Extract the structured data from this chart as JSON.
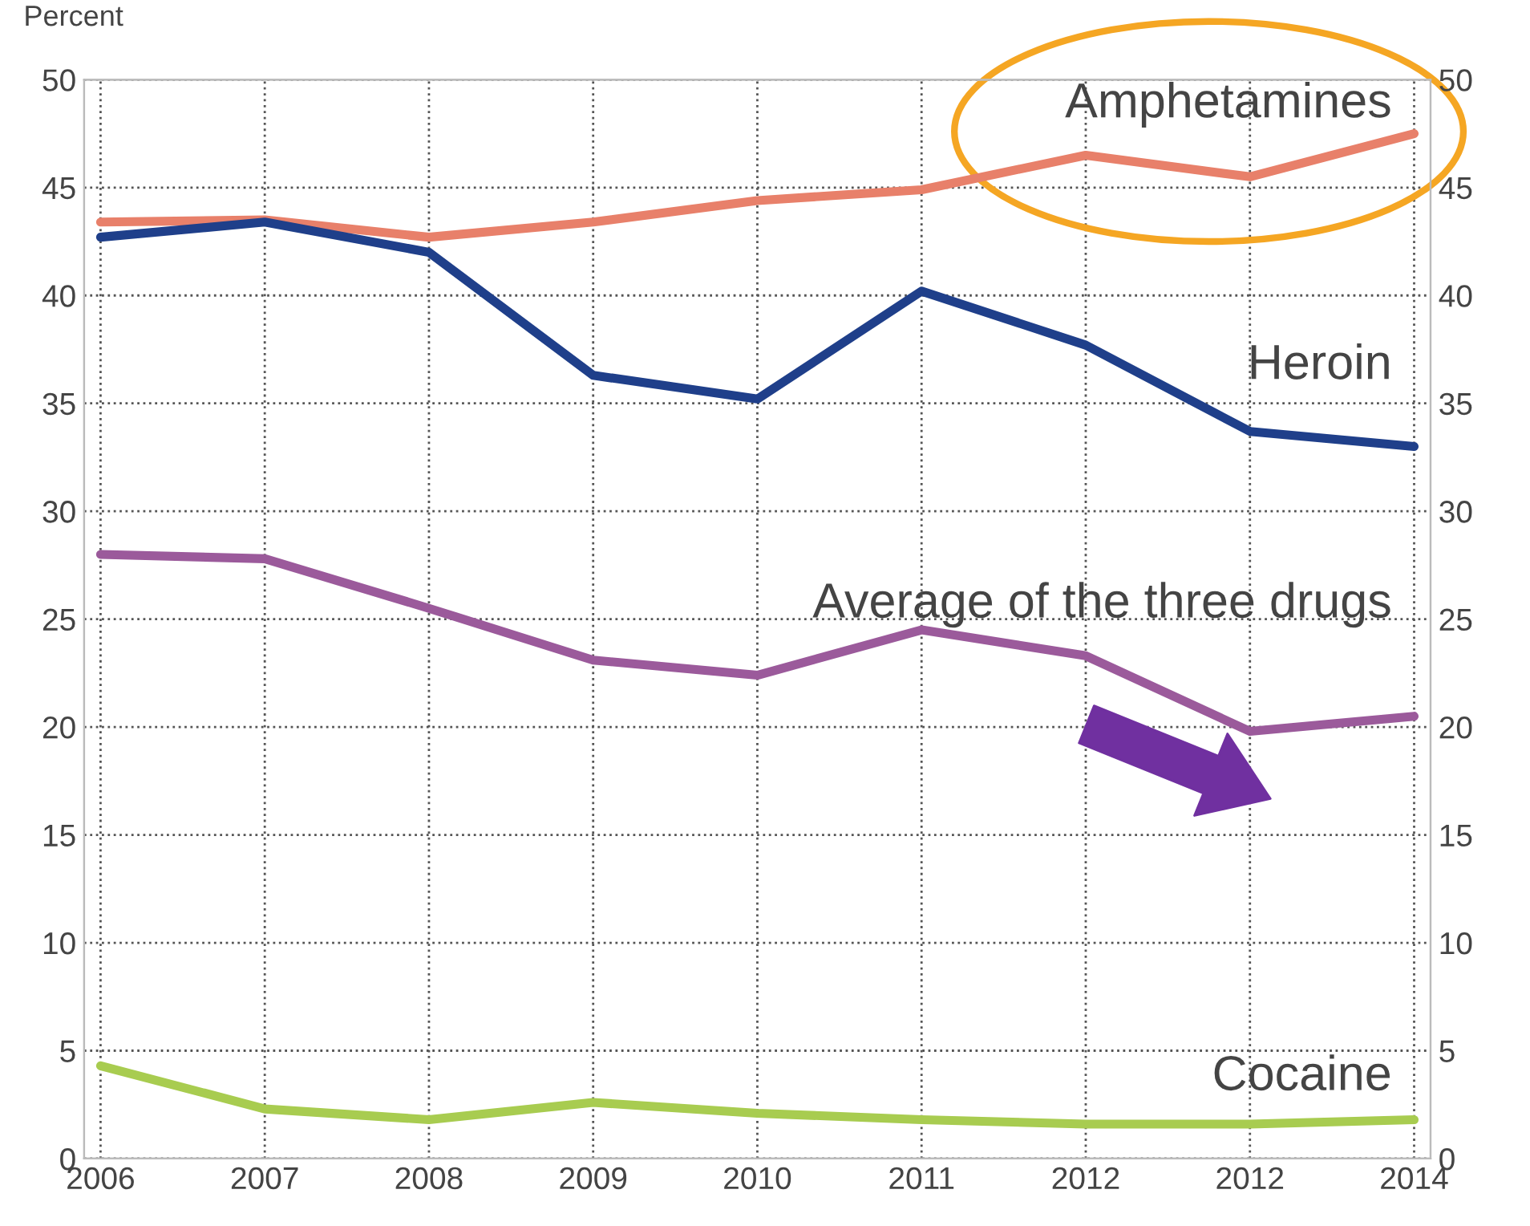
{
  "chart_data": {
    "type": "line",
    "ylabel": "Percent",
    "categories": [
      "2006",
      "2007",
      "2008",
      "2009",
      "2010",
      "2011",
      "2012",
      "2012",
      "2014"
    ],
    "series": [
      {
        "name": "Amphetamines",
        "color": "#e8806a",
        "values": [
          43.4,
          43.5,
          42.7,
          43.4,
          44.4,
          44.9,
          46.5,
          45.5,
          47.5
        ]
      },
      {
        "name": "Heroin",
        "color": "#1f3f8a",
        "values": [
          42.7,
          43.4,
          42.0,
          36.3,
          35.2,
          40.2,
          37.7,
          33.7,
          33.0
        ]
      },
      {
        "name": "Average of the three drugs",
        "color": "#9b5a9b",
        "values": [
          28.0,
          27.8,
          25.5,
          23.1,
          22.4,
          24.5,
          23.3,
          19.8,
          20.5
        ]
      },
      {
        "name": "Cocaine",
        "color": "#a8cc50",
        "values": [
          4.3,
          2.3,
          1.8,
          2.6,
          2.1,
          1.8,
          1.6,
          1.6,
          1.8
        ]
      }
    ],
    "ylim": [
      0,
      50
    ],
    "yticks": [
      0,
      5,
      10,
      15,
      20,
      25,
      30,
      35,
      40,
      45,
      50
    ],
    "y2lim": [
      0,
      50
    ],
    "y2ticks": [
      0,
      5,
      10,
      15,
      20,
      25,
      30,
      35,
      40,
      45,
      50
    ],
    "grid": true,
    "legend": false,
    "marker": "none",
    "line_style": "solid"
  }
}
